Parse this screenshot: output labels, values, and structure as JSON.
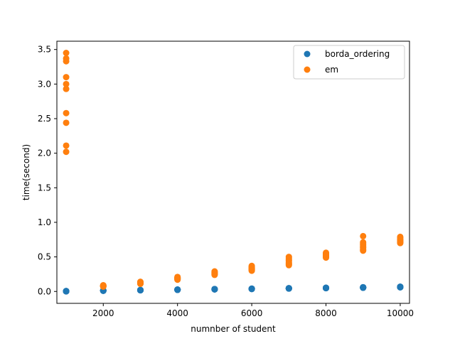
{
  "chart_data": {
    "type": "scatter",
    "xlabel": "numnber of student",
    "ylabel": "time(second)",
    "xlim": [
      750,
      10250
    ],
    "ylim": [
      -0.172,
      3.62
    ],
    "xticks": [
      2000,
      4000,
      6000,
      8000,
      10000
    ],
    "xtick_labels": [
      "2000",
      "4000",
      "6000",
      "8000",
      "10000"
    ],
    "yticks": [
      0.0,
      0.5,
      1.0,
      1.5,
      2.0,
      2.5,
      3.0,
      3.5
    ],
    "ytick_labels": [
      "0.0",
      "0.5",
      "1.0",
      "1.5",
      "2.0",
      "2.5",
      "3.0",
      "3.5"
    ],
    "grid": false,
    "legend_position": "upper right",
    "series": [
      {
        "name": "borda_ordering",
        "color": "#1f77b4",
        "points": [
          [
            1000,
            0.002
          ],
          [
            1000,
            0.003
          ],
          [
            1000,
            0.004
          ],
          [
            1000,
            0.005
          ],
          [
            1000,
            0.006
          ],
          [
            1000,
            0.003
          ],
          [
            1000,
            0.004
          ],
          [
            1000,
            0.002
          ],
          [
            1000,
            0.005
          ],
          [
            1000,
            0.004
          ],
          [
            2000,
            0.01
          ],
          [
            2000,
            0.012
          ],
          [
            2000,
            0.014
          ],
          [
            2000,
            0.011
          ],
          [
            2000,
            0.013
          ],
          [
            2000,
            0.012
          ],
          [
            2000,
            0.015
          ],
          [
            2000,
            0.01
          ],
          [
            2000,
            0.013
          ],
          [
            2000,
            0.011
          ],
          [
            3000,
            0.017
          ],
          [
            3000,
            0.019
          ],
          [
            3000,
            0.021
          ],
          [
            3000,
            0.018
          ],
          [
            3000,
            0.02
          ],
          [
            3000,
            0.022
          ],
          [
            3000,
            0.019
          ],
          [
            3000,
            0.017
          ],
          [
            3000,
            0.02
          ],
          [
            3000,
            0.018
          ],
          [
            4000,
            0.023
          ],
          [
            4000,
            0.025
          ],
          [
            4000,
            0.028
          ],
          [
            4000,
            0.024
          ],
          [
            4000,
            0.026
          ],
          [
            4000,
            0.027
          ],
          [
            4000,
            0.025
          ],
          [
            4000,
            0.023
          ],
          [
            4000,
            0.026
          ],
          [
            4000,
            0.024
          ],
          [
            5000,
            0.03
          ],
          [
            5000,
            0.032
          ],
          [
            5000,
            0.035
          ],
          [
            5000,
            0.031
          ],
          [
            5000,
            0.033
          ],
          [
            5000,
            0.034
          ],
          [
            5000,
            0.032
          ],
          [
            5000,
            0.03
          ],
          [
            5000,
            0.033
          ],
          [
            5000,
            0.031
          ],
          [
            6000,
            0.036
          ],
          [
            6000,
            0.038
          ],
          [
            6000,
            0.041
          ],
          [
            6000,
            0.037
          ],
          [
            6000,
            0.039
          ],
          [
            6000,
            0.04
          ],
          [
            6000,
            0.038
          ],
          [
            6000,
            0.036
          ],
          [
            6000,
            0.039
          ],
          [
            6000,
            0.037
          ],
          [
            7000,
            0.042
          ],
          [
            7000,
            0.044
          ],
          [
            7000,
            0.048
          ],
          [
            7000,
            0.043
          ],
          [
            7000,
            0.046
          ],
          [
            7000,
            0.047
          ],
          [
            7000,
            0.044
          ],
          [
            7000,
            0.042
          ],
          [
            7000,
            0.045
          ],
          [
            7000,
            0.043
          ],
          [
            8000,
            0.048
          ],
          [
            8000,
            0.05
          ],
          [
            8000,
            0.054
          ],
          [
            8000,
            0.049
          ],
          [
            8000,
            0.052
          ],
          [
            8000,
            0.053
          ],
          [
            8000,
            0.05
          ],
          [
            8000,
            0.048
          ],
          [
            8000,
            0.051
          ],
          [
            8000,
            0.049
          ],
          [
            9000,
            0.054
          ],
          [
            9000,
            0.057
          ],
          [
            9000,
            0.061
          ],
          [
            9000,
            0.055
          ],
          [
            9000,
            0.058
          ],
          [
            9000,
            0.06
          ],
          [
            9000,
            0.057
          ],
          [
            9000,
            0.054
          ],
          [
            9000,
            0.059
          ],
          [
            9000,
            0.056
          ],
          [
            10000,
            0.06
          ],
          [
            10000,
            0.063
          ],
          [
            10000,
            0.069
          ],
          [
            10000,
            0.062
          ],
          [
            10000,
            0.065
          ],
          [
            10000,
            0.067
          ],
          [
            10000,
            0.063
          ],
          [
            10000,
            0.061
          ],
          [
            10000,
            0.066
          ],
          [
            10000,
            0.064
          ]
        ]
      },
      {
        "name": "em",
        "color": "#ff7f0e",
        "points": [
          [
            1000,
            3.45
          ],
          [
            1000,
            3.37
          ],
          [
            1000,
            3.33
          ],
          [
            1000,
            3.1
          ],
          [
            1000,
            3.0
          ],
          [
            1000,
            2.93
          ],
          [
            1000,
            2.58
          ],
          [
            1000,
            2.44
          ],
          [
            1000,
            2.11
          ],
          [
            1000,
            2.02
          ],
          [
            2000,
            0.07
          ],
          [
            2000,
            0.075
          ],
          [
            2000,
            0.08
          ],
          [
            2000,
            0.085
          ],
          [
            2000,
            0.09
          ],
          [
            2000,
            0.078
          ],
          [
            2000,
            0.082
          ],
          [
            2000,
            0.072
          ],
          [
            2000,
            0.088
          ],
          [
            2000,
            0.076
          ],
          [
            3000,
            0.11
          ],
          [
            3000,
            0.115
          ],
          [
            3000,
            0.12
          ],
          [
            3000,
            0.125
          ],
          [
            3000,
            0.13
          ],
          [
            3000,
            0.14
          ],
          [
            3000,
            0.118
          ],
          [
            3000,
            0.128
          ],
          [
            3000,
            0.122
          ],
          [
            3000,
            0.135
          ],
          [
            4000,
            0.17
          ],
          [
            4000,
            0.18
          ],
          [
            4000,
            0.19
          ],
          [
            4000,
            0.2
          ],
          [
            4000,
            0.21
          ],
          [
            4000,
            0.185
          ],
          [
            4000,
            0.195
          ],
          [
            4000,
            0.175
          ],
          [
            4000,
            0.205
          ],
          [
            4000,
            0.188
          ],
          [
            5000,
            0.24
          ],
          [
            5000,
            0.25
          ],
          [
            5000,
            0.26
          ],
          [
            5000,
            0.27
          ],
          [
            5000,
            0.28
          ],
          [
            5000,
            0.29
          ],
          [
            5000,
            0.255
          ],
          [
            5000,
            0.265
          ],
          [
            5000,
            0.275
          ],
          [
            5000,
            0.245
          ],
          [
            6000,
            0.3
          ],
          [
            6000,
            0.31
          ],
          [
            6000,
            0.32
          ],
          [
            6000,
            0.33
          ],
          [
            6000,
            0.34
          ],
          [
            6000,
            0.35
          ],
          [
            6000,
            0.37
          ],
          [
            6000,
            0.315
          ],
          [
            6000,
            0.335
          ],
          [
            6000,
            0.36
          ],
          [
            7000,
            0.38
          ],
          [
            7000,
            0.39
          ],
          [
            7000,
            0.4
          ],
          [
            7000,
            0.42
          ],
          [
            7000,
            0.44
          ],
          [
            7000,
            0.46
          ],
          [
            7000,
            0.48
          ],
          [
            7000,
            0.5
          ],
          [
            7000,
            0.41
          ],
          [
            7000,
            0.45
          ],
          [
            8000,
            0.49
          ],
          [
            8000,
            0.5
          ],
          [
            8000,
            0.51
          ],
          [
            8000,
            0.52
          ],
          [
            8000,
            0.53
          ],
          [
            8000,
            0.54
          ],
          [
            8000,
            0.55
          ],
          [
            8000,
            0.56
          ],
          [
            8000,
            0.505
          ],
          [
            8000,
            0.535
          ],
          [
            9000,
            0.59
          ],
          [
            9000,
            0.61
          ],
          [
            9000,
            0.63
          ],
          [
            9000,
            0.65
          ],
          [
            9000,
            0.67
          ],
          [
            9000,
            0.69
          ],
          [
            9000,
            0.71
          ],
          [
            9000,
            0.8
          ],
          [
            9000,
            0.6
          ],
          [
            9000,
            0.64
          ],
          [
            10000,
            0.7
          ],
          [
            10000,
            0.71
          ],
          [
            10000,
            0.72
          ],
          [
            10000,
            0.73
          ],
          [
            10000,
            0.74
          ],
          [
            10000,
            0.76
          ],
          [
            10000,
            0.78
          ],
          [
            10000,
            0.79
          ],
          [
            10000,
            0.715
          ],
          [
            10000,
            0.75
          ]
        ]
      }
    ]
  }
}
